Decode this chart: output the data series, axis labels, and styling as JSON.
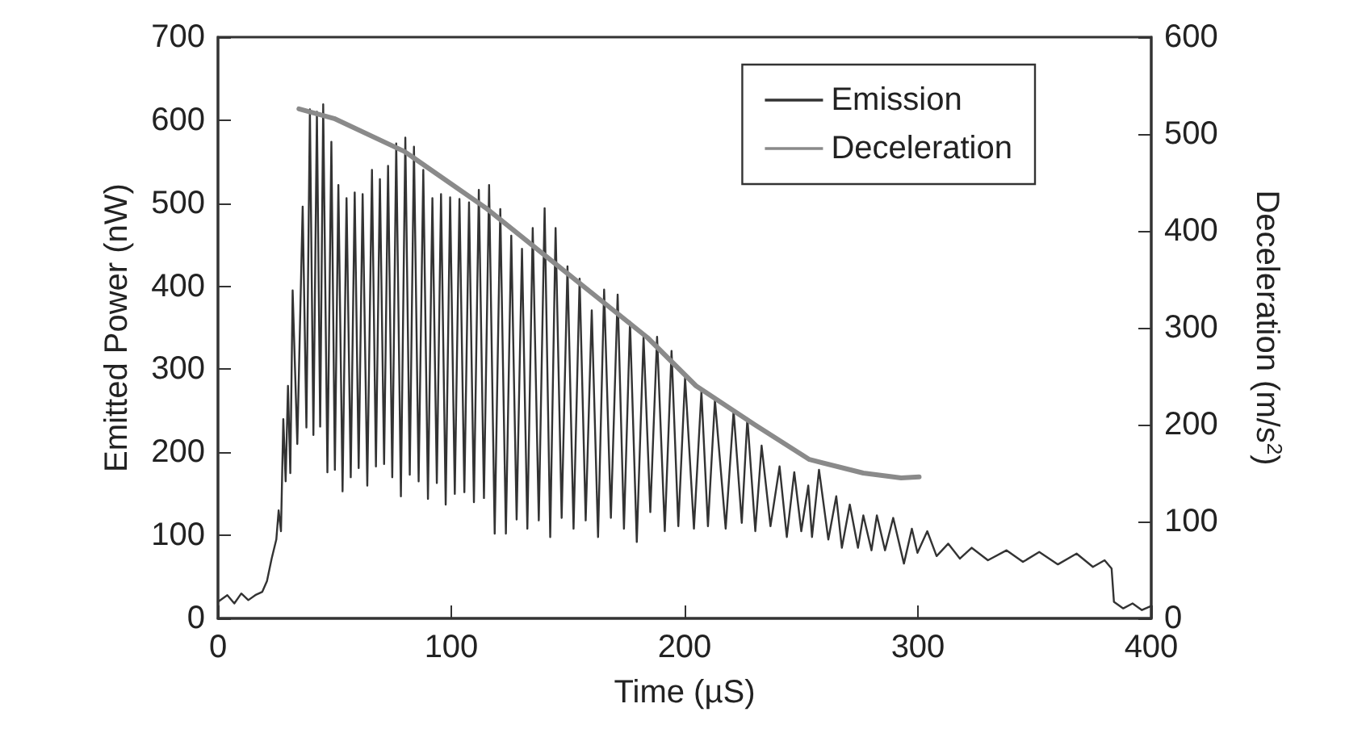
{
  "chart_data": {
    "type": "line",
    "xlabel": "Time (µS)",
    "ylabel": "Emitted Power (nW)",
    "y2label": "Deceleration (m/s$^{2}$)",
    "xlim": [
      0,
      400
    ],
    "xticks": [
      0,
      100,
      200,
      300,
      400
    ],
    "ylim": [
      0,
      700
    ],
    "yticks": [
      0,
      100,
      200,
      300,
      400,
      500,
      600,
      700
    ],
    "y2lim": [
      0,
      600
    ],
    "y2ticks": [
      0,
      100,
      200,
      300,
      400,
      500,
      600
    ],
    "grid": false,
    "legend": "top right",
    "marker": "none",
    "line_style": "solid",
    "series": [
      {
        "name": "Emission",
        "color": "#333333",
        "x": [
          0,
          4,
          7,
          10,
          13,
          16,
          19,
          21,
          23,
          25,
          26,
          27,
          28,
          29,
          30,
          31,
          32,
          34,
          36.3,
          37.9,
          39.4,
          40.9,
          42.4,
          43.8,
          45.1,
          46.9,
          48.6,
          50.1,
          51.6,
          53.4,
          55.1,
          56.9,
          58.6,
          60.3,
          62,
          64,
          66,
          67.7,
          69.4,
          71.2,
          72.9,
          74.7,
          76.4,
          78.4,
          80.3,
          82.2,
          84,
          86,
          88,
          90,
          91.9,
          93.8,
          95.6,
          97.6,
          99.5,
          101.5,
          103.5,
          105.6,
          107.6,
          109.7,
          111.8,
          114,
          116.2,
          118.6,
          121,
          123.4,
          125.7,
          128,
          130.3,
          132.6,
          134.9,
          137.5,
          140,
          142.4,
          144.7,
          147.3,
          149.8,
          152.4,
          155,
          157.6,
          160.2,
          162.9,
          165.5,
          168.4,
          171.3,
          174,
          176.6,
          179.5,
          182.4,
          185.3,
          188.2,
          191.5,
          194.4,
          197.3,
          200.2,
          204,
          207.2,
          210,
          213,
          217.6,
          221,
          224.5,
          226.9,
          230.3,
          233,
          236.8,
          240.7,
          243.8,
          247,
          250,
          253,
          254.6,
          257.6,
          261.6,
          265,
          267.4,
          270.8,
          274.3,
          276.6,
          280.1,
          282.4,
          285.9,
          289.4,
          294,
          297.4,
          299.8,
          304,
          308,
          313,
          318,
          323,
          330,
          338,
          345,
          352,
          360,
          368,
          375,
          380,
          383,
          384,
          388,
          392,
          396,
          400
        ],
        "values": [
          20,
          28,
          18,
          30,
          22,
          28,
          32,
          45,
          72,
          95,
          130,
          105,
          240,
          165,
          280,
          175,
          395,
          210,
          496,
          230,
          613,
          221,
          610,
          231,
          619,
          176,
          574,
          179,
          522,
          153,
          506,
          170,
          513,
          181,
          511,
          160,
          540,
          183,
          529,
          186,
          545,
          170,
          572,
          147,
          579,
          173,
          568,
          165,
          540,
          144,
          506,
          163,
          511,
          137,
          507,
          150,
          505,
          152,
          501,
          140,
          516,
          145,
          522,
          102,
          493,
          102,
          461,
          119,
          445,
          108,
          470,
          118,
          494,
          98,
          470,
          121,
          424,
          108,
          409,
          118,
          371,
          98,
          396,
          121,
          390,
          108,
          357,
          92,
          339,
          128,
          339,
          105,
          322,
          111,
          290,
          108,
          273,
          111,
          263,
          108,
          250,
          115,
          241,
          105,
          208,
          111,
          183,
          98,
          176,
          105,
          160,
          98,
          179,
          95,
          147,
          85,
          137,
          85,
          124,
          82,
          124,
          82,
          121,
          66,
          108,
          79,
          105,
          75,
          90,
          72,
          85,
          70,
          82,
          68,
          80,
          65,
          78,
          62,
          70,
          60,
          20,
          12,
          18,
          10,
          15
        ]
      },
      {
        "name": "Deceleration",
        "color": "#8a8a8a",
        "axis": "y2",
        "x": [
          34.7,
          49.8,
          79.9,
          114.6,
          149.3,
          184,
          204.9,
          230,
          253.5,
          276.6,
          292.8,
          300.5
        ],
        "values": [
          526,
          516,
          482,
          424,
          357,
          290,
          240,
          200,
          164,
          150,
          145,
          146
        ]
      }
    ]
  }
}
